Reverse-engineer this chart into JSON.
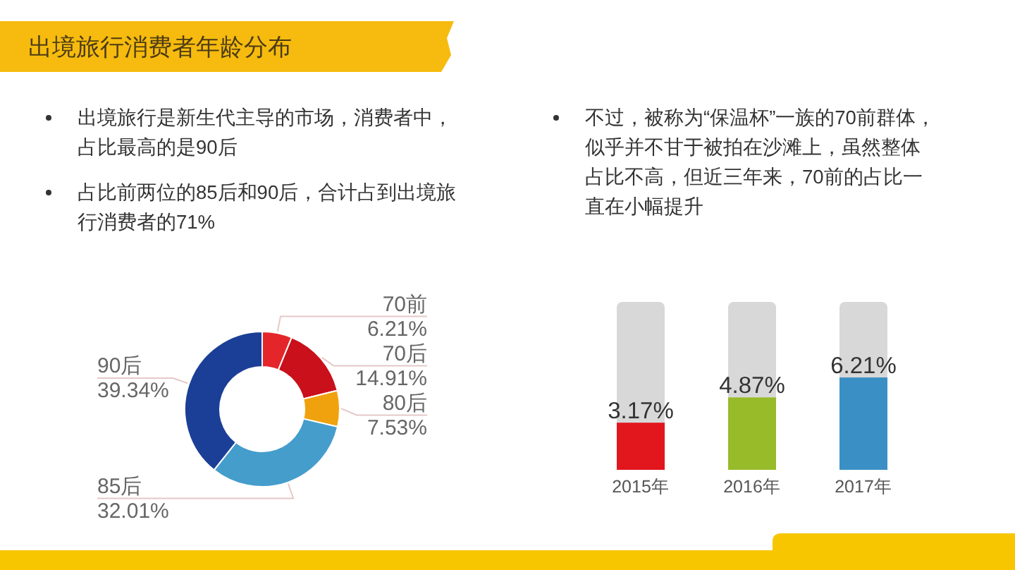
{
  "chart_data": [
    {
      "type": "donut",
      "title": "出境旅行消费者年龄分布",
      "categories": [
        "70前",
        "70后",
        "80后",
        "85后",
        "90后"
      ],
      "values": [
        6.21,
        14.91,
        7.53,
        32.01,
        39.34
      ],
      "value_labels": [
        "6.21%",
        "14.91%",
        "7.53%",
        "32.01%",
        "39.34%"
      ],
      "colors": [
        "#e4262b",
        "#c9101b",
        "#f0a20e",
        "#459dcc",
        "#1b3f97"
      ],
      "annotations": [
        "出境旅行是新生代主导的市场，消费者中，占比最高的是90后",
        "占比前两位的85后和90后，合计占到出境旅行消费者的71%"
      ]
    },
    {
      "type": "bar",
      "categories": [
        "2015年",
        "2016年",
        "2017年"
      ],
      "values": [
        3.17,
        4.87,
        6.21
      ],
      "value_labels": [
        "3.17%",
        "4.87%",
        "6.21%"
      ],
      "colors": [
        "#e2161d",
        "#98bb2a",
        "#3a90c4"
      ],
      "annotations": [
        "不过，被称为“保温杯”一族的70前群体，似乎并不甘于被拍在沙滩上，虽然整体占比不高，但近三年来，70前的占比一直在小幅提升"
      ]
    }
  ]
}
